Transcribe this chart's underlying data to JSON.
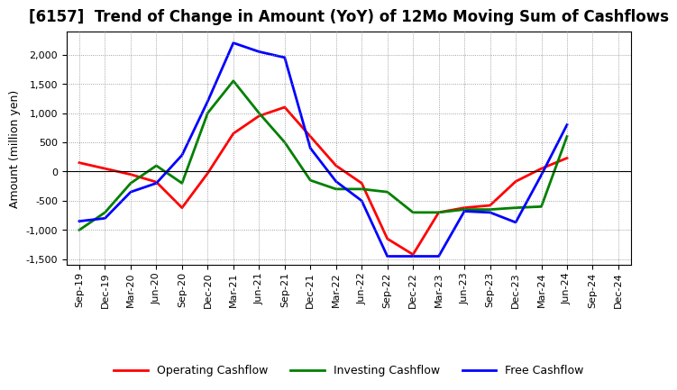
{
  "title": "[6157]  Trend of Change in Amount (YoY) of 12Mo Moving Sum of Cashflows",
  "ylabel": "Amount (million yen)",
  "x_labels": [
    "Sep-19",
    "Dec-19",
    "Mar-20",
    "Jun-20",
    "Sep-20",
    "Dec-20",
    "Mar-21",
    "Jun-21",
    "Sep-21",
    "Dec-21",
    "Mar-22",
    "Jun-22",
    "Sep-22",
    "Dec-22",
    "Mar-23",
    "Jun-23",
    "Sep-23",
    "Dec-23",
    "Mar-24",
    "Jun-24",
    "Sep-24",
    "Dec-24"
  ],
  "operating": [
    150,
    50,
    -50,
    -180,
    -620,
    -30,
    650,
    950,
    1100,
    600,
    100,
    -200,
    -1150,
    -1420,
    -700,
    -620,
    -580,
    -170,
    50,
    230,
    null,
    null
  ],
  "investing": [
    -1000,
    -700,
    -200,
    100,
    -200,
    1000,
    1550,
    1000,
    500,
    -150,
    -300,
    -300,
    -350,
    -700,
    -700,
    -650,
    -650,
    -620,
    -600,
    600,
    null,
    null
  ],
  "free": [
    -850,
    -800,
    -350,
    -200,
    280,
    1200,
    2200,
    2050,
    1950,
    400,
    -170,
    -500,
    -1450,
    -1450,
    -1450,
    -680,
    -700,
    -870,
    -60,
    800,
    null,
    null
  ],
  "operating_color": "#ff0000",
  "investing_color": "#008000",
  "free_color": "#0000ff",
  "ylim": [
    -1600,
    2400
  ],
  "yticks": [
    -1500,
    -1000,
    -500,
    0,
    500,
    1000,
    1500,
    2000
  ],
  "background_color": "#ffffff",
  "grid_color": "#aaaaaa",
  "title_fontsize": 12,
  "axis_label_fontsize": 9,
  "tick_fontsize": 8,
  "legend_fontsize": 9,
  "line_width": 2.0
}
